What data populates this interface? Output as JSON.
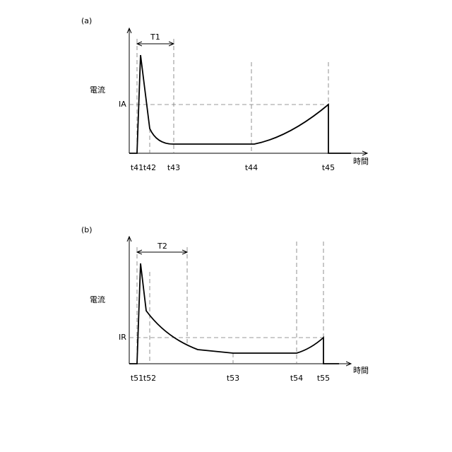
{
  "panels": [
    {
      "label": "(a)",
      "y_label": "電流",
      "x_label": "時間",
      "level_label": "IA",
      "period_label": "T1",
      "ticks": [
        "t41",
        "t42",
        "t43",
        "t44",
        "t45"
      ]
    },
    {
      "label": "(b)",
      "y_label": "電流",
      "x_label": "時間",
      "level_label": "IR",
      "period_label": "T2",
      "ticks": [
        "t51",
        "t52",
        "t53",
        "t54",
        "t55"
      ]
    }
  ]
}
